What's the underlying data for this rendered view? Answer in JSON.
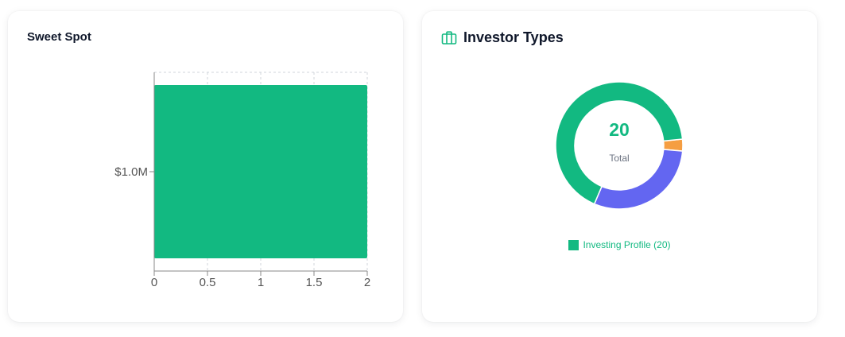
{
  "sweet_spot": {
    "title": "Sweet Spot"
  },
  "investor_types": {
    "title": "Investor Types",
    "icon": "briefcase-icon",
    "center_value": "20",
    "center_label": "Total",
    "legend_label": "Investing Profile (20)"
  },
  "colors": {
    "green": "#12b981",
    "orange": "#f59e42",
    "purple": "#6366f1"
  },
  "chart_data": [
    {
      "type": "bar",
      "orientation": "horizontal",
      "categories": [
        "$1.0M"
      ],
      "values": [
        2
      ],
      "xlim": [
        0,
        2
      ],
      "xticks": [
        "0",
        "0.5",
        "1",
        "1.5",
        "2"
      ],
      "grid": true
    },
    {
      "type": "pie",
      "variant": "donut",
      "slices": [
        {
          "value": 0.6,
          "color": "#f59e42"
        },
        {
          "value": 6.0,
          "color": "#6366f1"
        },
        {
          "value": 13.4,
          "color": "#12b981"
        }
      ],
      "total": "20",
      "legend": [
        {
          "label": "Investing Profile (20)",
          "color": "#12b981"
        }
      ]
    }
  ]
}
